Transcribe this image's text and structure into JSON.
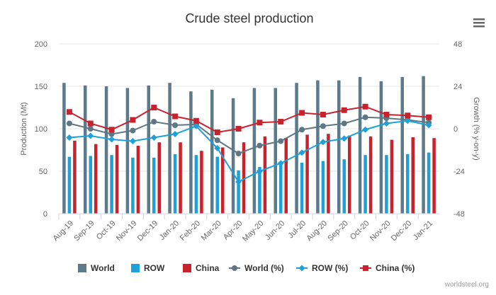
{
  "chart_data": {
    "type": "bar",
    "title": "Crude steel production",
    "categories": [
      "Aug-19",
      "Sep-19",
      "Oct-19",
      "Nov-19",
      "Dec-19",
      "Jan-20",
      "Feb-20",
      "Mar-20",
      "Apr-20",
      "May-20",
      "Jun-20",
      "Jul-20",
      "Aug-20",
      "Sep-20",
      "Oct-20",
      "Nov-20",
      "Dec-20",
      "Jan-21"
    ],
    "ylabel": "Production (Mt)",
    "y2label": "Growth (% y-on-y)",
    "ylim": [
      0,
      200
    ],
    "y2lim": [
      -48,
      48
    ],
    "yticks": [
      "0",
      "50",
      "100",
      "150",
      "200"
    ],
    "y2ticks": [
      "-48",
      "-24",
      "0",
      "24",
      "48"
    ],
    "bar_series": [
      {
        "name": "World",
        "color": "#5c7a8a",
        "values": [
          154,
          151,
          150,
          148,
          151,
          154,
          144,
          146,
          136,
          148,
          148,
          154,
          157,
          157,
          161,
          156,
          161,
          162
        ]
      },
      {
        "name": "ROW",
        "color": "#1da1d8",
        "values": [
          67,
          68,
          69,
          66,
          66,
          70,
          69,
          67,
          51,
          55,
          60,
          60,
          62,
          64,
          69,
          69,
          70,
          72
        ]
      },
      {
        "name": "China",
        "color": "#c8232c",
        "values": [
          86,
          82,
          81,
          80,
          84,
          84,
          74,
          78,
          84,
          91,
          89,
          93,
          94,
          92,
          91,
          87,
          90,
          89
        ]
      }
    ],
    "line_series": [
      {
        "name": "World (%)",
        "color": "#5f7785",
        "marker": "circle",
        "values": [
          3,
          0,
          -3,
          -1,
          4,
          2,
          2.5,
          -6.5,
          -14,
          -9.5,
          -7,
          -0.5,
          1.5,
          3,
          6.5,
          6,
          5,
          3.5
        ]
      },
      {
        "name": "ROW (%)",
        "color": "#1da1d8",
        "marker": "diamond",
        "values": [
          -5,
          -4,
          -6,
          -7,
          -5,
          -3,
          1.5,
          -11,
          -30,
          -24,
          -19.5,
          -13.5,
          -7.5,
          -5.5,
          -0.5,
          3,
          4.5,
          2
        ]
      },
      {
        "name": "China (%)",
        "color": "#c8232c",
        "marker": "square",
        "values": [
          9.5,
          3,
          -0.5,
          5,
          12,
          7,
          4.5,
          -2,
          0,
          3.5,
          4,
          9,
          8,
          10.5,
          12.5,
          8,
          7.5,
          6.5
        ]
      }
    ],
    "grid": true,
    "legend_position": "bottom"
  },
  "credit": "worldsteel.org",
  "menu_icon": "hamburger-menu-icon"
}
